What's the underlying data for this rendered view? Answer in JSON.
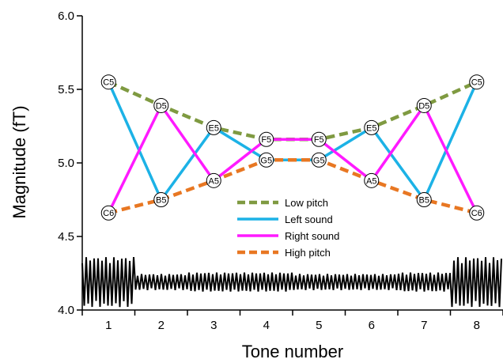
{
  "chart_data": {
    "type": "line",
    "title": "",
    "xlabel": "Tone number",
    "ylabel": "Magnitude (fT)",
    "xlim": [
      0.5,
      8.5
    ],
    "ylim": [
      4.0,
      6.0
    ],
    "x_ticks": [
      1,
      2,
      3,
      4,
      5,
      6,
      7,
      8
    ],
    "y_ticks": [
      "4.0",
      "4.5",
      "5.0",
      "5.5",
      "6.0"
    ],
    "grid": false,
    "legend_position": "center",
    "series": [
      {
        "name": "Low pitch",
        "color": "#7f9a41",
        "dash": "dashed",
        "x": [
          1,
          2,
          3,
          4,
          5,
          6,
          7,
          8
        ],
        "y": [
          5.55,
          5.39,
          5.24,
          5.16,
          5.16,
          5.24,
          5.39,
          5.55
        ],
        "labels": [
          "C5",
          "D5",
          "E5",
          "F5",
          "F5",
          "E5",
          "D5",
          "C5"
        ]
      },
      {
        "name": "Left sound",
        "color": "#1cb2e6",
        "dash": "solid",
        "x": [
          1,
          2,
          3,
          4,
          5,
          6,
          7,
          8
        ],
        "y": [
          5.55,
          4.75,
          5.24,
          5.02,
          5.02,
          5.24,
          4.75,
          5.55
        ],
        "labels": [
          "C5",
          "B5",
          "E5",
          "G5",
          "G5",
          "E5",
          "B5",
          "C5"
        ]
      },
      {
        "name": "Right sound",
        "color": "#ff1aff",
        "dash": "solid",
        "x": [
          1,
          2,
          3,
          4,
          5,
          6,
          7,
          8
        ],
        "y": [
          4.66,
          5.39,
          4.88,
          5.16,
          5.16,
          4.88,
          5.39,
          4.66
        ],
        "labels": [
          "C6",
          "D5",
          "A5",
          "F5",
          "F5",
          "A5",
          "D5",
          "C6"
        ]
      },
      {
        "name": "High pitch",
        "color": "#e87722",
        "dash": "dashed",
        "x": [
          1,
          2,
          3,
          4,
          5,
          6,
          7,
          8
        ],
        "y": [
          4.66,
          4.75,
          4.88,
          5.02,
          5.02,
          4.88,
          4.75,
          4.66
        ],
        "labels": [
          "C6",
          "B5",
          "A5",
          "G5",
          "G5",
          "A5",
          "B5",
          "C6"
        ]
      }
    ],
    "waveform": {
      "baseline": 4.19,
      "amplitudes": [
        0.17,
        0.055,
        0.065,
        0.065,
        0.055,
        0.055,
        0.065,
        0.17
      ]
    }
  }
}
